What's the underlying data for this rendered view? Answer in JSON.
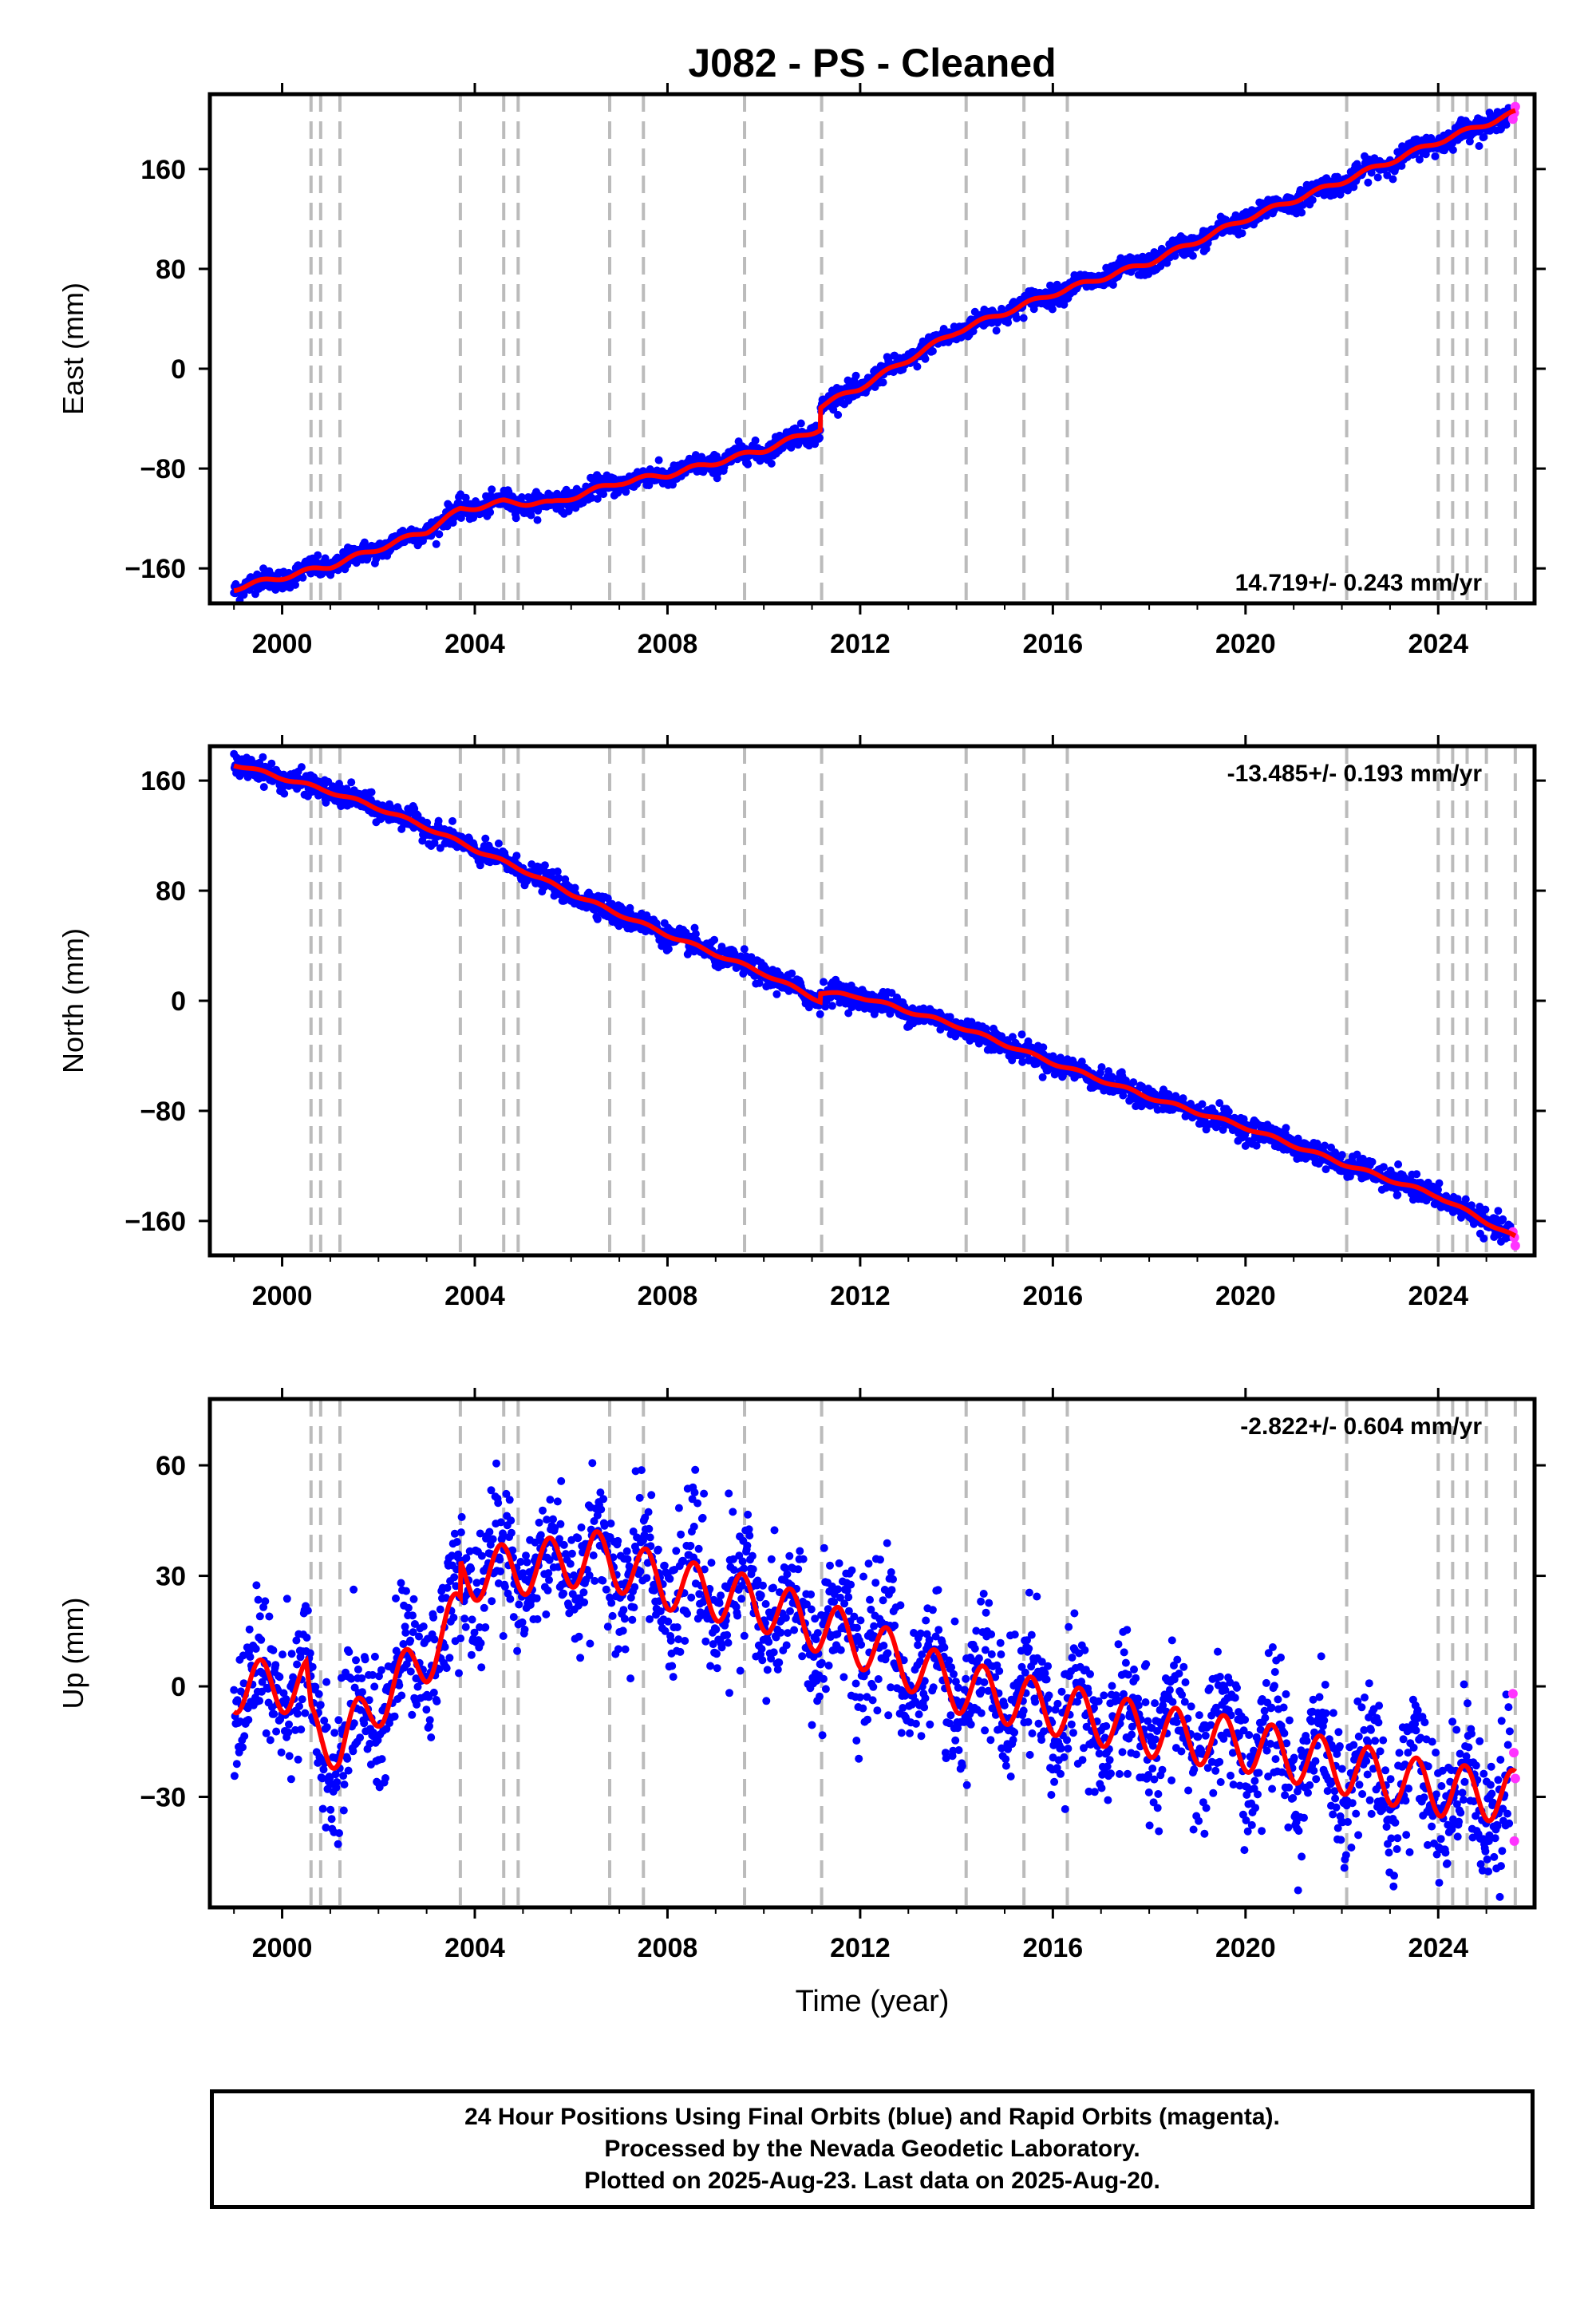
{
  "title": "J082  - PS - Cleaned",
  "colors": {
    "final_orbits": "#0000ff",
    "rapid_orbits": "#ff33ff",
    "model": "#ff0000",
    "event_lines": "#bbbbbb"
  },
  "chart_data": [
    {
      "type": "scatter",
      "ylabel": "East (mm)",
      "xlabel": "",
      "xlim": [
        1998.5,
        2026.0
      ],
      "ylim": [
        -188,
        220
      ],
      "yticks": [
        -160,
        -80,
        0,
        80,
        160
      ],
      "xticks": [
        2000,
        2004,
        2008,
        2012,
        2016,
        2020,
        2024
      ],
      "x_ticklabels": [
        "2000",
        "2004",
        "2008",
        "2012",
        "2016",
        "2020",
        "2024"
      ],
      "y_ticklabels": [
        "−160",
        "−80",
        "0",
        "80",
        "160"
      ],
      "rate_label": "14.719+/- 0.243 mm/yr",
      "rate_position": "bottom-right",
      "event_lines_x": [
        2000.6,
        2000.8,
        2001.2,
        2003.7,
        2004.6,
        2004.9,
        2006.8,
        2007.5,
        2009.6,
        2011.2,
        2014.2,
        2015.4,
        2016.3,
        2022.1,
        2024.0,
        2024.3,
        2024.6,
        2025.0,
        2025.6
      ],
      "model_series": {
        "name": "",
        "x": [
          1999.0,
          2001.0,
          2003.0,
          2003.7,
          2004.6,
          2005.6,
          2007.0,
          2008.0,
          2010.0,
          2011.17,
          2011.18,
          2012.0,
          2014.0,
          2016.0,
          2018.0,
          2020.0,
          2022.0,
          2024.0,
          2025.6
        ],
        "y": [
          -176,
          -158,
          -130,
          -113,
          -107,
          -108,
          -91,
          -85,
          -65,
          -48,
          -30,
          -15,
          30,
          60,
          85,
          120,
          150,
          182,
          205
        ]
      },
      "seasonal_amplitude": 2.5,
      "scatter_spread": 4,
      "rapid_points": {
        "x": [
          2025.55,
          2025.58,
          2025.6
        ],
        "y": [
          200,
          205,
          210
        ]
      }
    },
    {
      "type": "scatter",
      "ylabel": "North (mm)",
      "xlabel": "",
      "xlim": [
        1998.5,
        2026.0
      ],
      "ylim": [
        -185,
        185
      ],
      "yticks": [
        -160,
        -80,
        0,
        80,
        160
      ],
      "xticks": [
        2000,
        2004,
        2008,
        2012,
        2016,
        2020,
        2024
      ],
      "x_ticklabels": [
        "2000",
        "2004",
        "2008",
        "2012",
        "2016",
        "2020",
        "2024"
      ],
      "y_ticklabels": [
        "−160",
        "−80",
        "0",
        "80",
        "160"
      ],
      "rate_label": "-13.485+/- 0.193 mm/yr",
      "rate_position": "top-right",
      "event_lines_x": [
        2000.6,
        2000.8,
        2001.2,
        2003.7,
        2004.6,
        2004.9,
        2006.8,
        2007.5,
        2009.6,
        2011.2,
        2014.2,
        2015.4,
        2016.3,
        2022.1,
        2024.0,
        2024.3,
        2024.6,
        2025.0,
        2025.6
      ],
      "model_series": {
        "name": "",
        "x": [
          1999.0,
          2000.0,
          2001.0,
          2002.0,
          2003.0,
          2004.0,
          2005.0,
          2006.0,
          2008.0,
          2010.0,
          2011.17,
          2011.18,
          2012.0,
          2014.0,
          2016.0,
          2018.0,
          2020.0,
          2022.0,
          2024.0,
          2025.6
        ],
        "y": [
          172,
          162,
          152,
          140,
          126,
          110,
          95,
          78,
          48,
          20,
          0,
          6,
          3,
          -18,
          -45,
          -70,
          -92,
          -118,
          -142,
          -172
        ]
      },
      "seasonal_amplitude": 1.5,
      "scatter_spread": 4,
      "rapid_points": {
        "x": [
          2025.55,
          2025.58,
          2025.6
        ],
        "y": [
          -168,
          -172,
          -178
        ]
      }
    },
    {
      "type": "scatter",
      "ylabel": "Up (mm)",
      "xlabel": "Time (year)",
      "xlim": [
        1998.5,
        2026.0
      ],
      "ylim": [
        -60,
        78
      ],
      "yticks": [
        -30,
        0,
        30,
        60
      ],
      "xticks": [
        2000,
        2004,
        2008,
        2012,
        2016,
        2020,
        2024
      ],
      "x_ticklabels": [
        "2000",
        "2004",
        "2008",
        "2012",
        "2016",
        "2020",
        "2024"
      ],
      "y_ticklabels": [
        "−30",
        "0",
        "30",
        "60"
      ],
      "rate_label": "-2.822+/- 0.604 mm/yr",
      "rate_position": "top-right",
      "event_lines_x": [
        2000.6,
        2000.8,
        2001.2,
        2003.7,
        2004.6,
        2004.9,
        2006.8,
        2007.5,
        2009.6,
        2011.2,
        2014.2,
        2015.4,
        2016.3,
        2022.1,
        2024.0,
        2024.3,
        2024.6,
        2025.0,
        2025.6
      ],
      "model_series": {
        "name": "",
        "x": [
          1999.0,
          2000.5,
          2000.6,
          2001.2,
          2002.0,
          2003.0,
          2003.7,
          2003.71,
          2005.0,
          2006.5,
          2008.0,
          2010.0,
          2012.0,
          2014.0,
          2016.0,
          2018.0,
          2020.0,
          2022.0,
          2024.0,
          2025.6
        ],
        "y": [
          0,
          0,
          -12,
          -16,
          -4,
          8,
          20,
          30,
          32,
          35,
          28,
          22,
          12,
          0,
          -6,
          -12,
          -16,
          -22,
          -28,
          -30
        ]
      },
      "seasonal_amplitude": 9,
      "scatter_spread": 9,
      "rapid_points": {
        "x": [
          2025.55,
          2025.57,
          2025.6,
          2025.58
        ],
        "y": [
          -2,
          -18,
          -25,
          -42
        ]
      }
    }
  ],
  "footer": {
    "line1": "24 Hour Positions Using Final Orbits (blue) and Rapid Orbits (magenta).",
    "line2": "Processed by the Nevada Geodetic Laboratory.",
    "line3": "Plotted on 2025-Aug-23. Last data on 2025-Aug-20."
  }
}
